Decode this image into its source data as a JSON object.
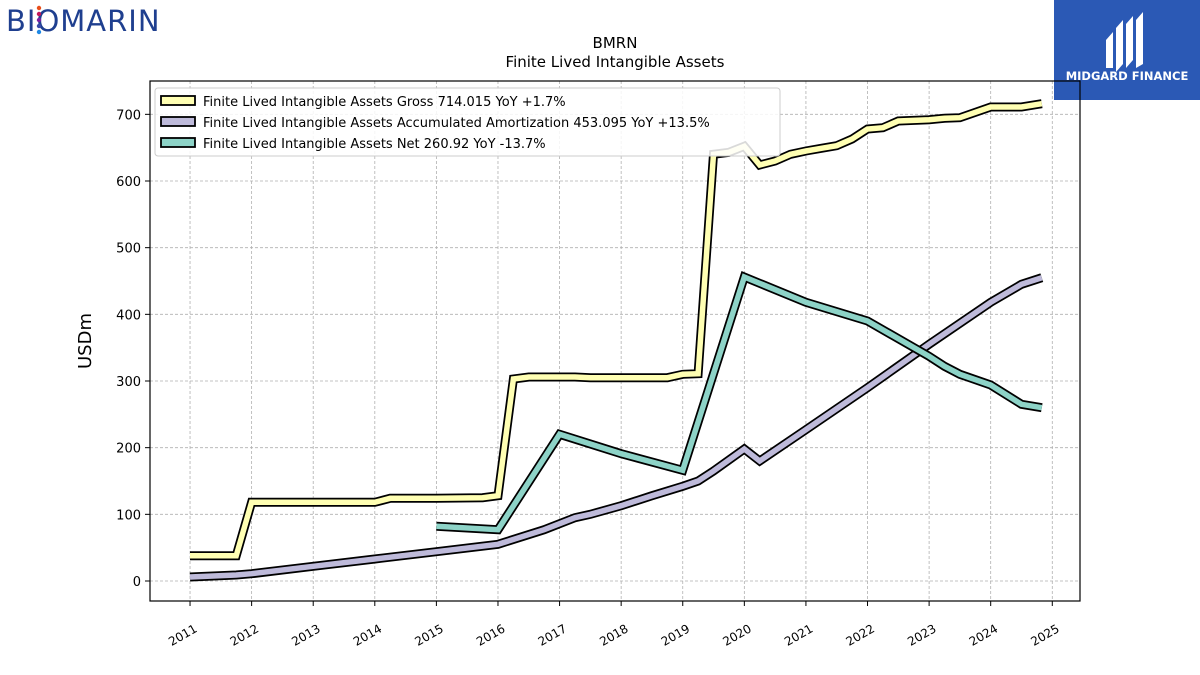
{
  "brand": {
    "logo_text": "BIOMARIN"
  },
  "badge": {
    "label": "MIDGARD FINANCE",
    "color": "#2b59b5"
  },
  "chart_data": {
    "type": "line",
    "title": "BMRN",
    "subtitle": "Finite Lived Intangible Assets",
    "ylabel": "USDm",
    "xlabel": "",
    "ylim": [
      -30,
      750
    ],
    "xlim": [
      2010.35,
      2025.45
    ],
    "yticks": [
      0,
      100,
      200,
      300,
      400,
      500,
      600,
      700
    ],
    "xticks": [
      2011,
      2012,
      2013,
      2014,
      2015,
      2016,
      2017,
      2018,
      2019,
      2020,
      2021,
      2022,
      2023,
      2024,
      2025
    ],
    "xtick_labels": [
      "2011",
      "2012",
      "2013",
      "2014",
      "2015",
      "2016",
      "2017",
      "2018",
      "2019",
      "2020",
      "2021",
      "2022",
      "2023",
      "2024",
      "2025"
    ],
    "grid": true,
    "legend_position": "top-left",
    "series": [
      {
        "name": "Finite Lived Intangible Assets Gross  714.015 YoY +1.7%",
        "color": "#ffffb3",
        "points": [
          [
            2011.0,
            38
          ],
          [
            2011.75,
            38
          ],
          [
            2012.0,
            118
          ],
          [
            2014.0,
            118
          ],
          [
            2014.25,
            124
          ],
          [
            2015.0,
            124
          ],
          [
            2015.75,
            125
          ],
          [
            2016.0,
            128
          ],
          [
            2016.25,
            303
          ],
          [
            2016.5,
            306
          ],
          [
            2017.25,
            306
          ],
          [
            2017.5,
            305
          ],
          [
            2018.75,
            305
          ],
          [
            2019.0,
            310
          ],
          [
            2019.25,
            311
          ],
          [
            2019.5,
            640
          ],
          [
            2019.75,
            643
          ],
          [
            2020.0,
            652
          ],
          [
            2020.25,
            624
          ],
          [
            2020.5,
            630
          ],
          [
            2020.75,
            640
          ],
          [
            2021.0,
            645
          ],
          [
            2021.25,
            649
          ],
          [
            2021.5,
            653
          ],
          [
            2021.75,
            663
          ],
          [
            2022.0,
            678
          ],
          [
            2022.25,
            680
          ],
          [
            2022.5,
            690
          ],
          [
            2023.0,
            692
          ],
          [
            2023.25,
            694
          ],
          [
            2023.5,
            695
          ],
          [
            2024.0,
            711
          ],
          [
            2024.25,
            711
          ],
          [
            2024.5,
            711
          ],
          [
            2024.83,
            716
          ]
        ]
      },
      {
        "name": "Finite Lived Intangible Assets Accumulated Amortization  453.095 YoY +13.5%",
        "color": "#bebada",
        "points": [
          [
            2011.0,
            6
          ],
          [
            2011.75,
            9
          ],
          [
            2012.0,
            11
          ],
          [
            2013.0,
            22
          ],
          [
            2014.0,
            33
          ],
          [
            2015.0,
            44
          ],
          [
            2016.0,
            55
          ],
          [
            2016.75,
            77
          ],
          [
            2017.0,
            86
          ],
          [
            2017.25,
            95
          ],
          [
            2017.5,
            100
          ],
          [
            2018.0,
            113
          ],
          [
            2018.5,
            128
          ],
          [
            2019.0,
            142
          ],
          [
            2019.25,
            150
          ],
          [
            2019.5,
            165
          ],
          [
            2020.0,
            198
          ],
          [
            2020.25,
            180
          ],
          [
            2021.0,
            227
          ],
          [
            2022.0,
            290
          ],
          [
            2023.0,
            355
          ],
          [
            2024.0,
            418
          ],
          [
            2024.5,
            445
          ],
          [
            2024.83,
            455
          ]
        ]
      },
      {
        "name": "Finite Lived Intangible Assets Net  260.92 YoY -13.7%",
        "color": "#8dd3c7",
        "points": [
          [
            2015.0,
            82
          ],
          [
            2016.0,
            77
          ],
          [
            2017.0,
            220
          ],
          [
            2018.0,
            191
          ],
          [
            2019.0,
            166
          ],
          [
            2020.0,
            456
          ],
          [
            2021.0,
            418
          ],
          [
            2022.0,
            390
          ],
          [
            2023.0,
            337
          ],
          [
            2023.25,
            322
          ],
          [
            2023.5,
            310
          ],
          [
            2024.0,
            294
          ],
          [
            2024.5,
            265
          ],
          [
            2024.83,
            260
          ]
        ]
      }
    ]
  }
}
